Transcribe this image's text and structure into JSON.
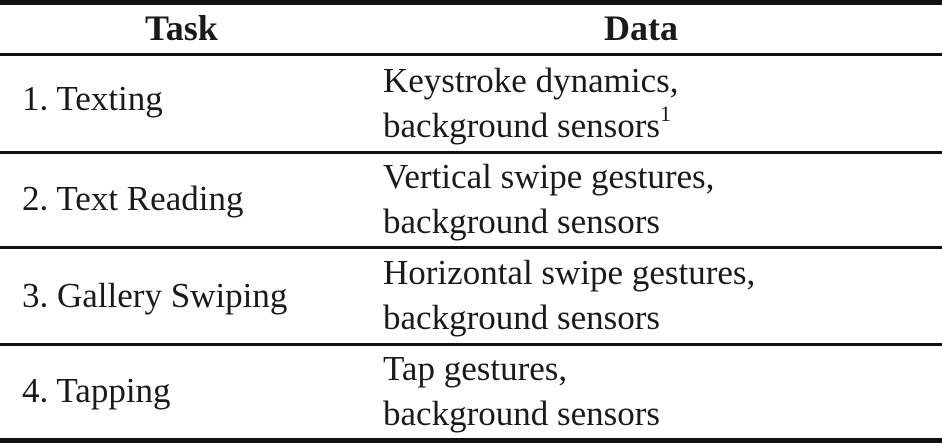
{
  "table": {
    "headers": {
      "task": "Task",
      "data": "Data"
    },
    "rows": [
      {
        "task": "1. Texting",
        "data_line1": "Keystroke dynamics,",
        "data_line2": "background sensors",
        "data_footnote": "1"
      },
      {
        "task": "2. Text Reading",
        "data_line1": "Vertical swipe gestures,",
        "data_line2": "background sensors",
        "data_footnote": ""
      },
      {
        "task": "3. Gallery Swiping",
        "data_line1": "Horizontal swipe gestures,",
        "data_line2": "background sensors",
        "data_footnote": ""
      },
      {
        "task": "4. Tapping",
        "data_line1": "Tap gestures,",
        "data_line2": "background sensors",
        "data_footnote": ""
      }
    ]
  }
}
